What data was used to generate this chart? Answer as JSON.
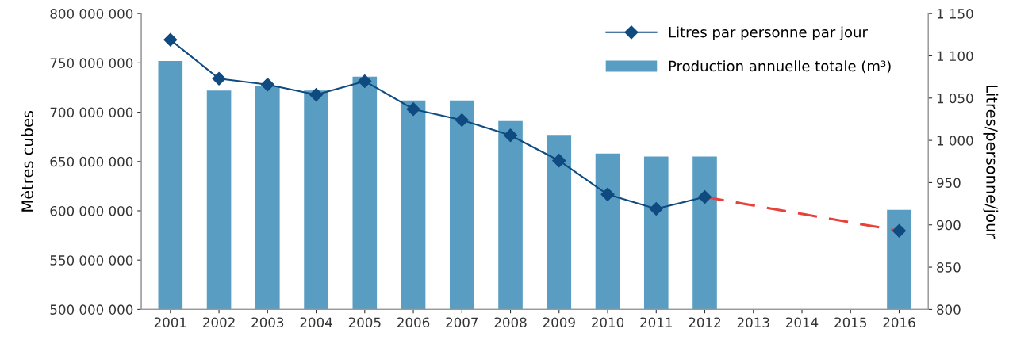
{
  "chart_data": {
    "type": "bar",
    "ylabel": "Mètres cubes",
    "y2label": "Litres/personne/jour",
    "categories": [
      "2001",
      "2002",
      "2003",
      "2004",
      "2005",
      "2006",
      "2007",
      "2008",
      "2009",
      "2010",
      "2011",
      "2012",
      "2013",
      "2014",
      "2015",
      "2016"
    ],
    "series": [
      {
        "name": "Production annuelle totale (m³)",
        "color": "#599dc2",
        "values": [
          752000000,
          722000000,
          727000000,
          722000000,
          736000000,
          712000000,
          712000000,
          691000000,
          677000000,
          658000000,
          655000000,
          655000000,
          null,
          null,
          null,
          601000000
        ]
      },
      {
        "type": "line",
        "axis": "y2",
        "name": "Litres par personne par jour",
        "color": "#0f4a80",
        "marker": "diamond",
        "line_style": "solid",
        "values": [
          1119,
          1073,
          1066,
          1054,
          1070,
          1037,
          1024,
          1006,
          976,
          936,
          919,
          933,
          null,
          null,
          null,
          893
        ]
      },
      {
        "type": "line",
        "axis": "y2",
        "color": "#e8413a",
        "marker": "none",
        "line_style": "dashed",
        "values": [
          null,
          null,
          null,
          null,
          null,
          null,
          null,
          null,
          null,
          null,
          null,
          933,
          null,
          null,
          null,
          893
        ]
      }
    ],
    "ylim": [
      500000000,
      800000000
    ],
    "yticks": [
      {
        "value": 500000000,
        "label": "500 000 000"
      },
      {
        "value": 550000000,
        "label": "550 000 000"
      },
      {
        "value": 600000000,
        "label": "600 000 000"
      },
      {
        "value": 650000000,
        "label": "650 000 000"
      },
      {
        "value": 700000000,
        "label": "700 000 000"
      },
      {
        "value": 750000000,
        "label": "750 000 000"
      },
      {
        "value": 800000000,
        "label": "800 000 000"
      }
    ],
    "y2lim": [
      800,
      1150
    ],
    "y2ticks": [
      800,
      850,
      900,
      950,
      {
        "value": 1000,
        "label": "1 000"
      },
      {
        "value": 1050,
        "label": "1 050"
      },
      {
        "value": 1100,
        "label": "1 100"
      },
      {
        "value": 1150,
        "label": "1 150"
      }
    ],
    "grid": false,
    "legend": "top right"
  }
}
